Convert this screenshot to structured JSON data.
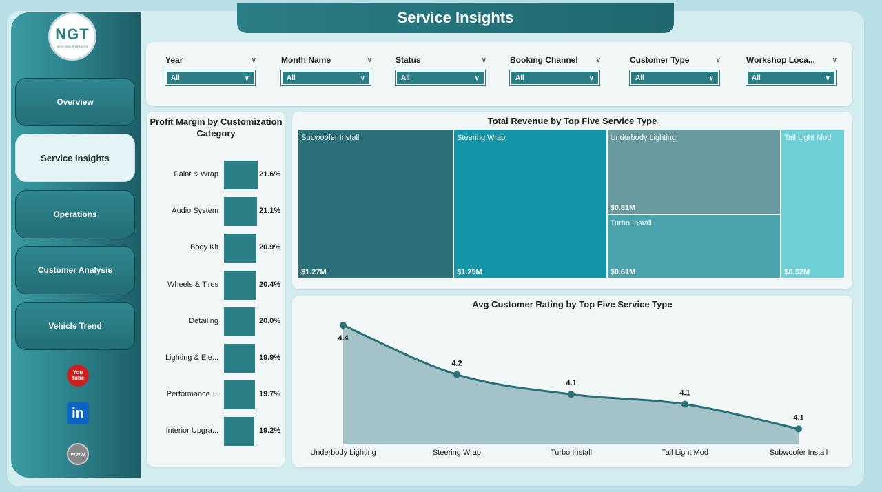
{
  "header": {
    "title": "Service Insights"
  },
  "logo": {
    "text": "NGT",
    "subtext": "NEXT GEN TEMPLATES"
  },
  "sidebar": {
    "items": [
      {
        "label": "Overview",
        "active": false
      },
      {
        "label": "Service Insights",
        "active": true
      },
      {
        "label": "Operations",
        "active": false
      },
      {
        "label": "Customer Analysis",
        "active": false
      },
      {
        "label": "Vehicle Trend",
        "active": false
      }
    ],
    "social": {
      "youtube": "youtube-icon",
      "linkedin": "linkedin-icon",
      "website": "globe-icon"
    }
  },
  "filters": [
    {
      "label": "Year",
      "value": "All"
    },
    {
      "label": "Month Name",
      "value": "All"
    },
    {
      "label": "Status",
      "value": "All"
    },
    {
      "label": "Booking Channel",
      "value": "All"
    },
    {
      "label": "Customer Type",
      "value": "All"
    },
    {
      "label": "Workshop Loca...",
      "value": "All"
    }
  ],
  "colors": {
    "accent": "#2b7d86",
    "tiles": [
      "#2b7079",
      "#1596a8",
      "#67999f",
      "#4aa3ad",
      "#6fcfd6"
    ]
  },
  "chart_data": [
    {
      "type": "bar",
      "title": "Profit Margin by Customization Category",
      "categories": [
        "Paint & Wrap",
        "Audio System",
        "Body Kit",
        "Wheels & Tires",
        "Detailing",
        "Lighting & Ele...",
        "Performance ...",
        "Interior Upgra..."
      ],
      "values": [
        21.6,
        21.1,
        20.9,
        20.4,
        20.0,
        19.9,
        19.7,
        19.2
      ],
      "labels": [
        "21.6%",
        "21.1%",
        "20.9%",
        "20.4%",
        "20.0%",
        "19.9%",
        "19.7%",
        "19.2%"
      ]
    },
    {
      "type": "treemap",
      "title": "Total Revenue by Top Five Service Type",
      "categories": [
        "Subwoofer Install",
        "Steering Wrap",
        "Underbody Lighting",
        "Turbo Install",
        "Tail Light Mod"
      ],
      "values": [
        1.27,
        1.25,
        0.81,
        0.61,
        0.52
      ],
      "labels": [
        "$1.27M",
        "$1.25M",
        "$0.81M",
        "$0.61M",
        "$0.52M"
      ]
    },
    {
      "type": "area",
      "title": "Avg Customer Rating by Top Five Service Type",
      "categories": [
        "Underbody Lighting",
        "Steering Wrap",
        "Turbo Install",
        "Tail Light Mod",
        "Subwoofer Install"
      ],
      "values": [
        4.4,
        4.2,
        4.1,
        4.1,
        4.1
      ],
      "labels": [
        "4.4",
        "4.2",
        "4.1",
        "4.1",
        "4.1"
      ]
    }
  ]
}
